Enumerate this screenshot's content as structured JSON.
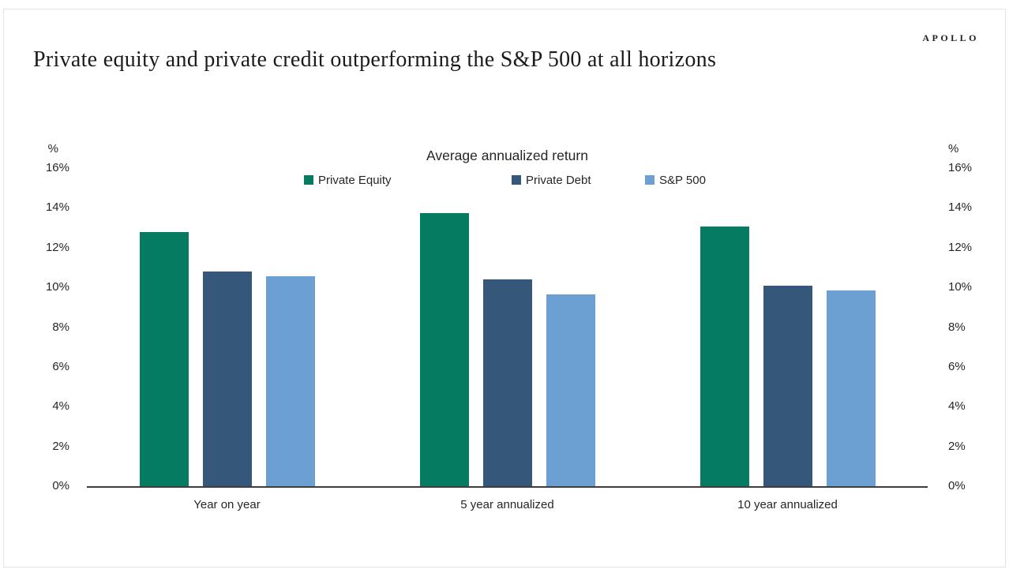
{
  "page": {
    "title": "Private equity and private credit outperforming the S&P 500 at all horizons",
    "logo": "APOLLO"
  },
  "chart_data": {
    "type": "bar",
    "title": "Average annualized return",
    "axis_unit": "%",
    "categories": [
      "Year on year",
      "5 year annualized",
      "10 year annualized"
    ],
    "series": [
      {
        "name": "Private Equity",
        "color": "#057c61",
        "values": [
          12.8,
          13.75,
          13.05
        ]
      },
      {
        "name": "Private Debt",
        "color": "#35587a",
        "values": [
          10.8,
          10.4,
          10.1
        ]
      },
      {
        "name": "S&P 500",
        "color": "#6ca0d3",
        "values": [
          10.55,
          9.65,
          9.85
        ]
      }
    ],
    "ylim": [
      0,
      16
    ],
    "ytick_values": [
      0,
      2,
      4,
      6,
      8,
      10,
      12,
      14,
      16
    ],
    "ytick_labels": [
      "0%",
      "2%",
      "4%",
      "6%",
      "8%",
      "10%",
      "12%",
      "14%",
      "16%"
    ],
    "grid": false,
    "legend_position": "top",
    "dual_y_axis": true
  }
}
